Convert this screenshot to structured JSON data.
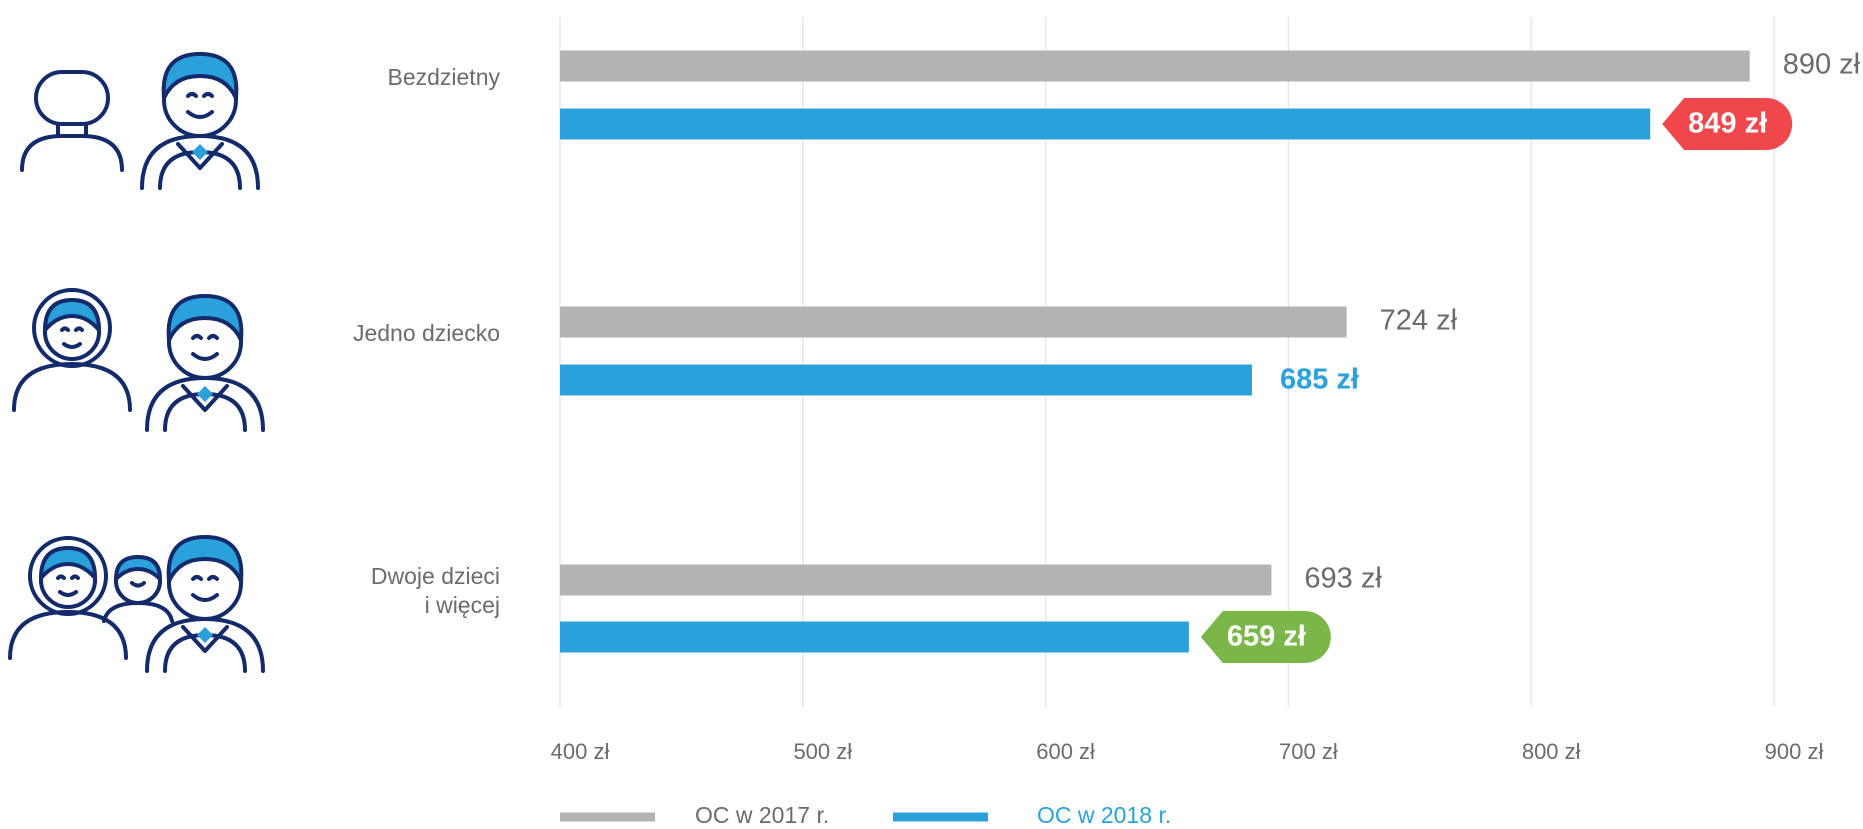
{
  "chart_data": {
    "type": "hbar",
    "categories": [
      "Bezdzietny",
      "Jedno dziecko",
      "Dwoje dzieci\ni więcej"
    ],
    "series": [
      {
        "name": "OC w 2017 r.",
        "color": "#b3b3b3",
        "values": [
          890,
          724,
          693
        ],
        "value_labels": [
          "890 zł",
          "724 zł",
          "693 zł"
        ]
      },
      {
        "name": "OC w 2018 r.",
        "color": "#2ba1dc",
        "values": [
          849,
          685,
          659
        ],
        "value_labels": [
          "849 zł",
          "685 zł",
          "659 zł"
        ],
        "label_badges": [
          "#f0474d",
          null,
          "#7ab648"
        ]
      }
    ],
    "xlim": [
      400,
      900
    ],
    "xticks": [
      {
        "value": 400,
        "label": "400 zł"
      },
      {
        "value": 500,
        "label": "500 zł"
      },
      {
        "value": 600,
        "label": "600 zł"
      },
      {
        "value": 700,
        "label": "700 zł"
      },
      {
        "value": 800,
        "label": "800 zł"
      },
      {
        "value": 900,
        "label": "900 zł"
      }
    ],
    "grid": true
  }
}
